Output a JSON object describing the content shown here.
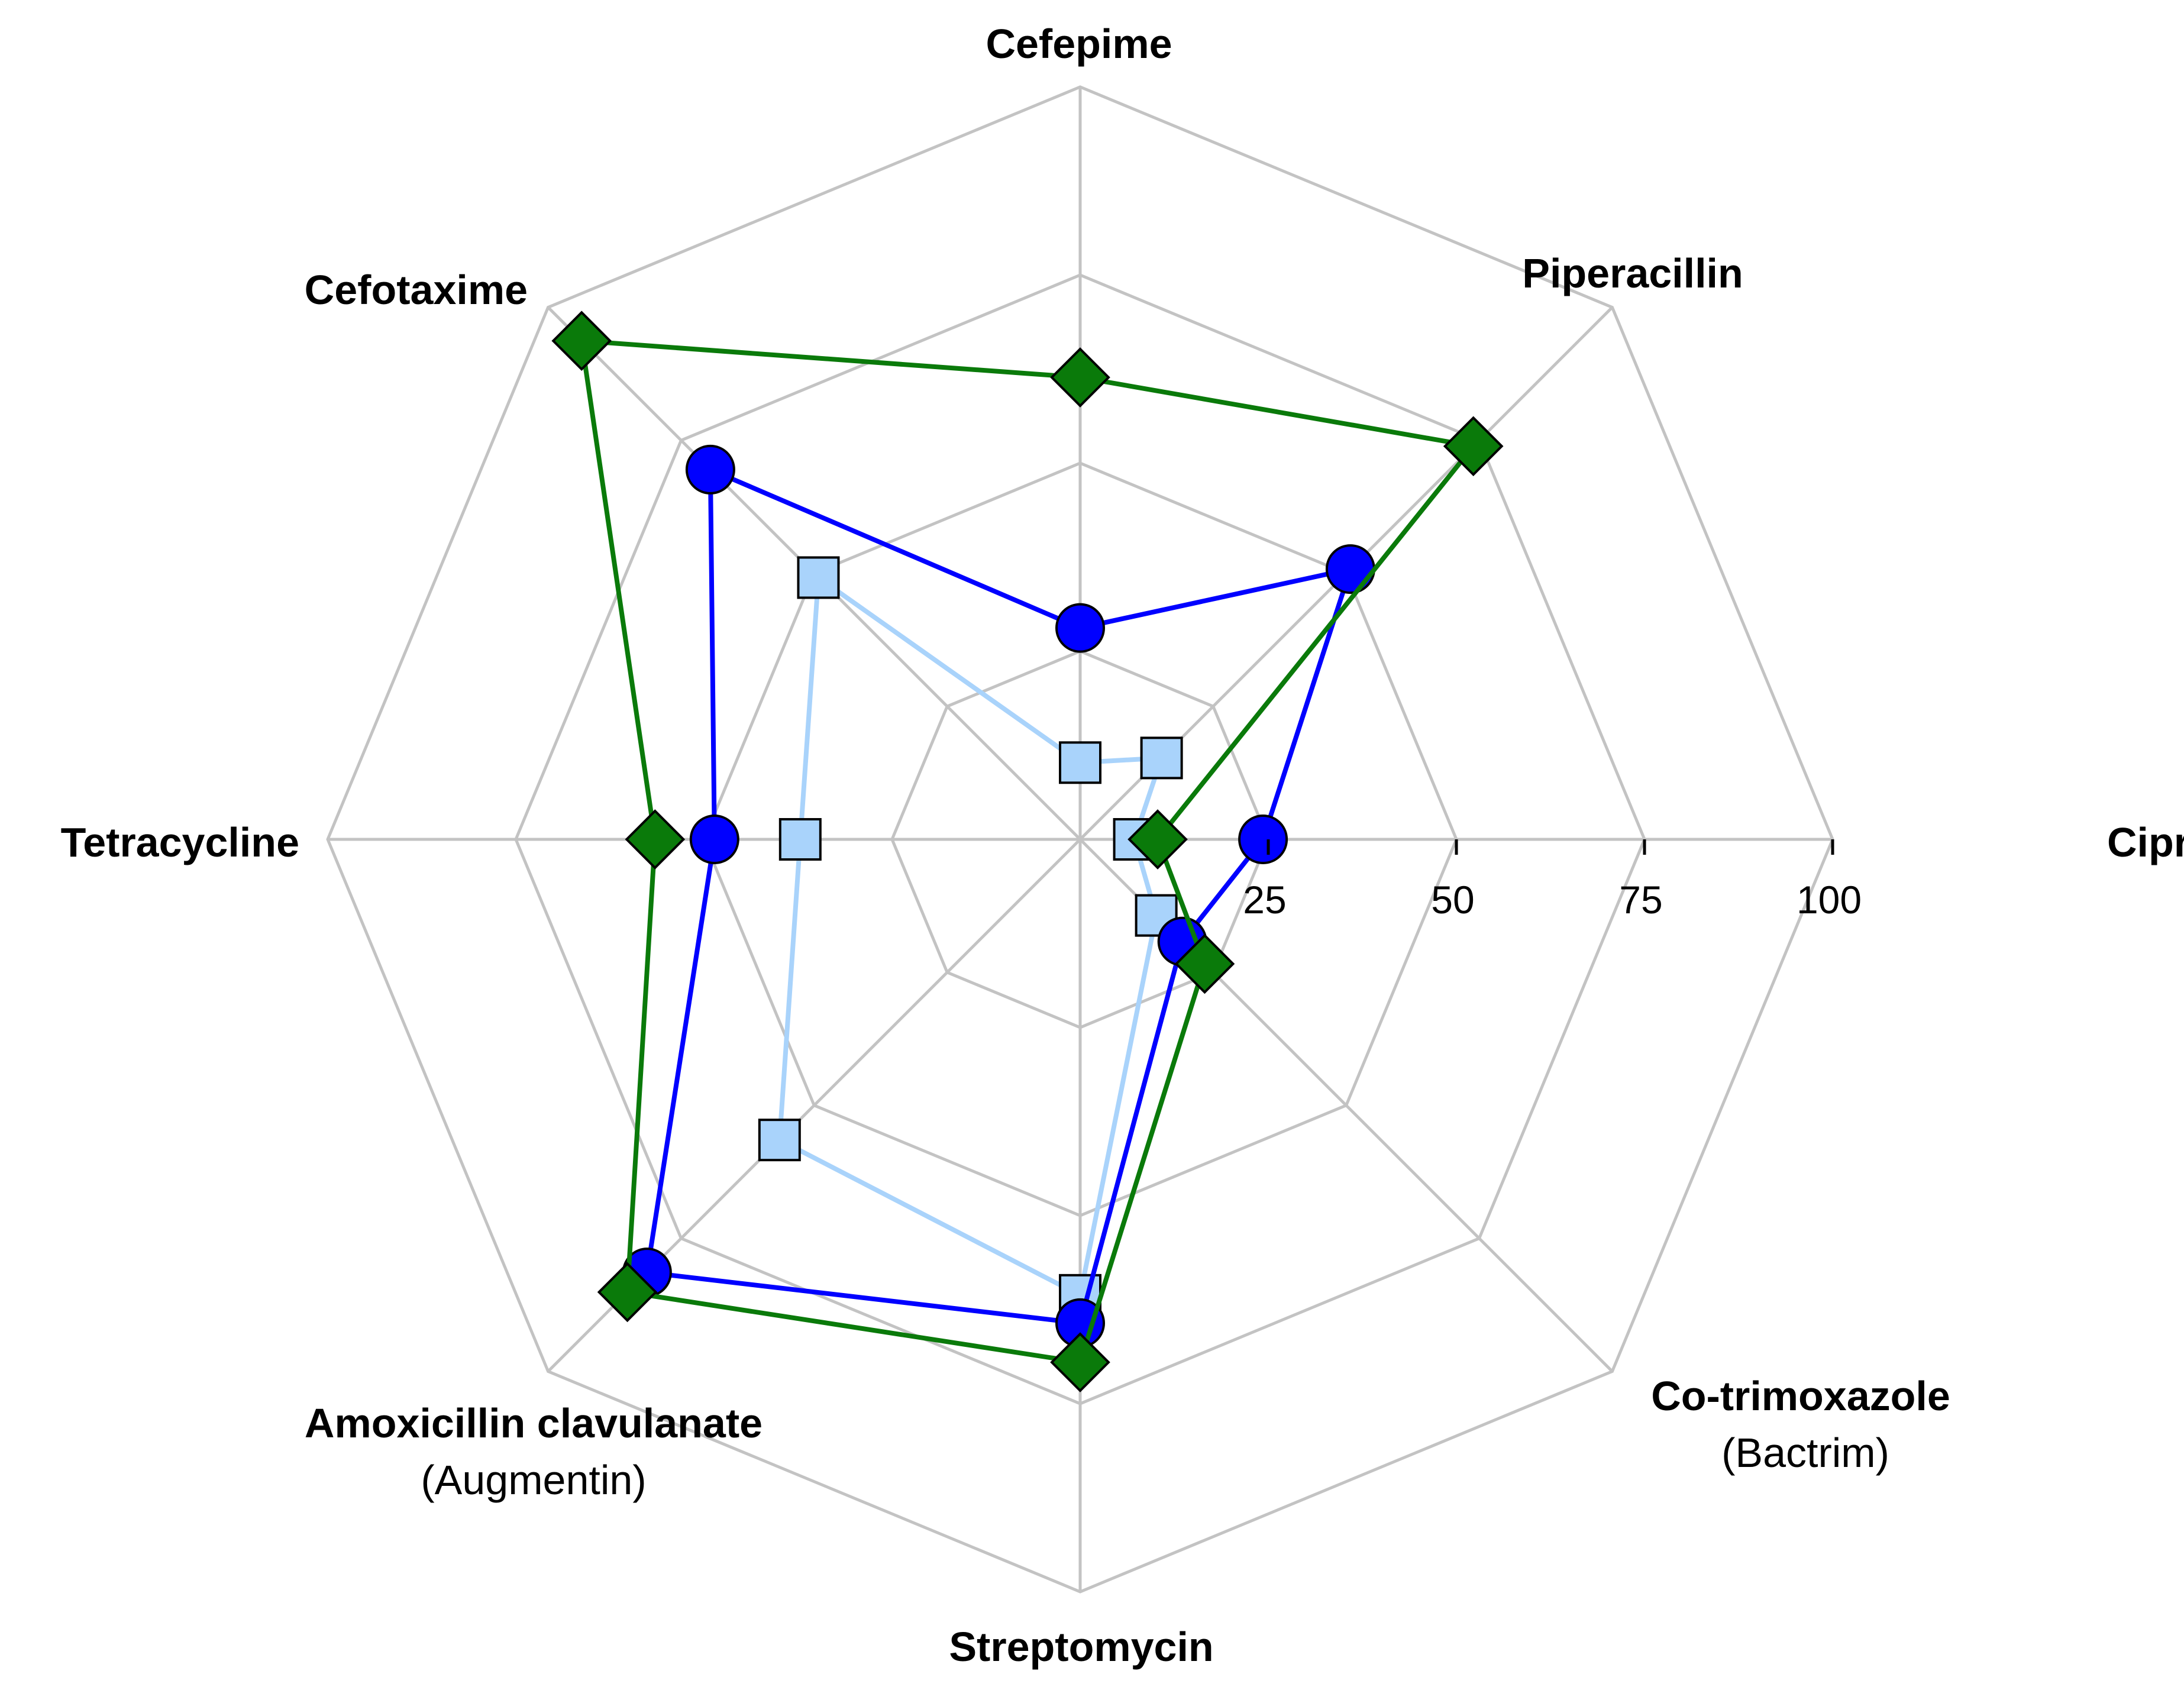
{
  "chart_data": {
    "type": "radar",
    "axes": [
      {
        "label": "Ciprofloxacin",
        "sublabel": ""
      },
      {
        "label": "Piperacillin",
        "sublabel": ""
      },
      {
        "label": "Cefepime",
        "sublabel": ""
      },
      {
        "label": "Cefotaxime",
        "sublabel": ""
      },
      {
        "label": "Tetracycline",
        "sublabel": ""
      },
      {
        "label": "Amoxicillin clavulanate",
        "sublabel": "(Augmentin)"
      },
      {
        "label": "Streptomycin",
        "sublabel": ""
      },
      {
        "label": "Co-trimoxazole",
        "sublabel": "(Bactrim)"
      }
    ],
    "radial_ticks": [
      "25",
      "50",
      "75",
      "100"
    ],
    "range": [
      0,
      100
    ],
    "grid": true,
    "series": [
      {
        "marker": "square",
        "color": "#a9d3fb",
        "values": [
          7.2,
          15.3,
          10.2,
          49.2,
          37.2,
          56.5,
          60.6,
          14.3
        ]
      },
      {
        "marker": "circle",
        "color": "#0000ff",
        "values": [
          24.3,
          50.8,
          28.1,
          69.5,
          48.6,
          81.4,
          64.3,
          19.2
        ]
      },
      {
        "marker": "diamond",
        "color": "#0a7a0a",
        "values": [
          10.3,
          73.9,
          61.4,
          93.7,
          56.5,
          85.1,
          69.5,
          23.4
        ]
      }
    ]
  }
}
